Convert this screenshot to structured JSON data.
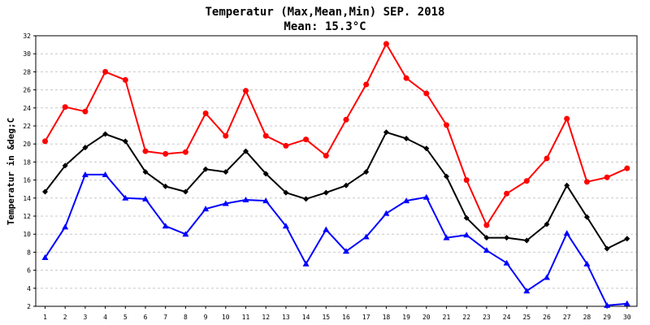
{
  "chart_data": {
    "type": "line",
    "title": "Temperatur (Max,Mean,Min) SEP. 2018",
    "subtitle": "Mean: 15.3°C",
    "xlabel": "",
    "ylabel": "Temperatur in &deg;C",
    "x": [
      1,
      2,
      3,
      4,
      5,
      6,
      7,
      8,
      9,
      10,
      11,
      12,
      13,
      14,
      15,
      16,
      17,
      18,
      19,
      20,
      21,
      22,
      23,
      24,
      25,
      26,
      27,
      28,
      29,
      30
    ],
    "ylim": [
      2,
      32
    ],
    "yticks": [
      2,
      4,
      6,
      8,
      10,
      12,
      14,
      16,
      18,
      20,
      22,
      24,
      26,
      28,
      30,
      32
    ],
    "grid": true,
    "legend": "none",
    "series": [
      {
        "color": "#ff0000",
        "marker": "circle",
        "values": [
          20.3,
          24.1,
          23.6,
          28.0,
          27.1,
          19.2,
          18.9,
          19.1,
          23.4,
          20.9,
          25.9,
          20.9,
          19.8,
          20.5,
          18.7,
          22.7,
          26.6,
          31.1,
          27.3,
          25.6,
          22.1,
          16.0,
          11.0,
          14.5,
          15.9,
          18.4,
          22.8,
          15.8,
          16.3,
          17.3
        ]
      },
      {
        "color": "#000000",
        "marker": "diamond",
        "values": [
          14.7,
          17.6,
          19.6,
          21.1,
          20.3,
          16.9,
          15.3,
          14.7,
          17.2,
          16.9,
          19.2,
          16.7,
          14.6,
          13.9,
          14.6,
          15.4,
          16.9,
          21.3,
          20.6,
          19.5,
          16.4,
          11.8,
          9.6,
          9.6,
          9.3,
          11.1,
          15.4,
          11.9,
          8.4,
          9.5
        ]
      },
      {
        "color": "#0000ff",
        "marker": "triangle",
        "values": [
          7.4,
          10.8,
          16.6,
          16.6,
          14.0,
          13.9,
          10.9,
          10.0,
          12.8,
          13.4,
          13.8,
          13.7,
          10.9,
          6.7,
          10.5,
          8.1,
          9.7,
          12.3,
          13.7,
          14.1,
          9.6,
          9.9,
          8.2,
          6.8,
          3.7,
          5.2,
          10.1,
          6.7,
          2.1,
          2.3
        ]
      }
    ]
  }
}
